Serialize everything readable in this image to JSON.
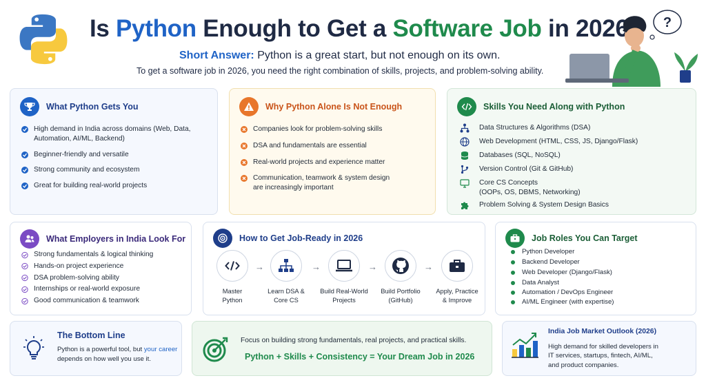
{
  "header": {
    "title_part1": "Is ",
    "title_python": "Python",
    "title_part2": " Enough to Get a ",
    "title_software": "Software Job",
    "title_part3": " in 2026?",
    "short_label": "Short Answer:",
    "short_text": " Python is a great start, but not enough on its own.",
    "subtitle": "To get a software job in 2026, you need the right combination of skills, projects, and problem-solving ability.",
    "thought_bubble": "?"
  },
  "python_gets": {
    "title": "What Python Gets You",
    "items": [
      "High demand in India across domains (Web, Data, Automation, AI/ML, Backend)",
      "Beginner-friendly and versatile",
      "Strong community and ecosystem",
      "Great for building real-world projects"
    ]
  },
  "not_enough": {
    "title": "Why Python Alone Is Not Enough",
    "items": [
      "Companies look for problem-solving skills",
      "DSA and fundamentals are essential",
      "Real-world projects and experience matter",
      "Communication, teamwork & system design are increasingly important"
    ]
  },
  "skills": {
    "title": "Skills You Need Along with Python",
    "items": [
      {
        "icon": "hierarchy-icon",
        "text": "Data Structures & Algorithms (DSA)"
      },
      {
        "icon": "globe-icon",
        "text": "Web Development (HTML, CSS, JS, Django/Flask)"
      },
      {
        "icon": "database-icon",
        "text": "Databases (SQL, NoSQL)"
      },
      {
        "icon": "branch-icon",
        "text": "Version Control (Git & GitHub)"
      },
      {
        "icon": "monitor-icon",
        "text": "Core CS Concepts",
        "sub": "(OOPs, OS, DBMS, Networking)"
      },
      {
        "icon": "puzzle-icon",
        "text": "Problem Solving & System Design Basics"
      }
    ]
  },
  "employers": {
    "title": "What Employers in India Look For",
    "items": [
      "Strong fundamentals & logical thinking",
      "Hands-on project experience",
      "DSA problem-solving ability",
      "Internships or real-world exposure",
      "Good communication & teamwork"
    ]
  },
  "job_ready": {
    "title": "How to Get Job-Ready in 2026",
    "steps": [
      {
        "icon": "code-icon",
        "l1": "Master",
        "l2": "Python"
      },
      {
        "icon": "org-chart-icon",
        "l1": "Learn DSA &",
        "l2": "Core CS"
      },
      {
        "icon": "laptop-icon",
        "l1": "Build Real-World",
        "l2": "Projects"
      },
      {
        "icon": "github-icon",
        "l1": "Build Portfolio",
        "l2": "(GitHub)"
      },
      {
        "icon": "briefcase-icon",
        "l1": "Apply, Practice",
        "l2": "& Improve"
      }
    ],
    "arrow": "→"
  },
  "roles": {
    "title": "Job Roles You Can Target",
    "items": [
      "Python Developer",
      "Backend Developer",
      "Web Developer (Django/Flask)",
      "Data Analyst",
      "Automation / DevOps Engineer",
      "AI/ML Engineer (with expertise)"
    ]
  },
  "bottom_line": {
    "title": "The Bottom Line",
    "text1": "Python is a powerful tool, but ",
    "highlight": "your career",
    "text2": "depends on how well you use it."
  },
  "focus": {
    "text": "Focus on building strong fundamentals, real projects, and practical skills.",
    "formula": "Python + Skills + Consistency = Your Dream Job in 2026"
  },
  "outlook": {
    "title": "India Job Market Outlook (2026)",
    "lines": [
      "High demand for skilled developers in",
      "IT services, startups, fintech, AI/ML,",
      "and product companies."
    ]
  },
  "colors": {
    "blue": "#1f63c6",
    "green": "#1f8a4c",
    "orange": "#e8762b",
    "purple": "#7b4bc4",
    "navy": "#1f2a44"
  }
}
